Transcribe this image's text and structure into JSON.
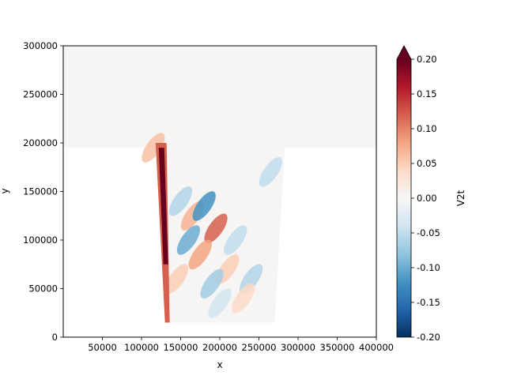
{
  "chart_data": {
    "type": "heatmap",
    "variable": "V2t",
    "xlabel": "x",
    "ylabel": "y",
    "xlim": [
      0,
      400000
    ],
    "ylim": [
      0,
      300000
    ],
    "xticks": [
      50000,
      100000,
      150000,
      200000,
      250000,
      300000,
      350000,
      400000
    ],
    "yticks": [
      0,
      50000,
      100000,
      150000,
      200000,
      250000,
      300000
    ],
    "colorbar": {
      "label": "V2t",
      "vmin": -0.2,
      "vmax": 0.2,
      "ticks": [
        "-0.20",
        "-0.15",
        "-0.10",
        "-0.05",
        "0.00",
        "0.05",
        "0.10",
        "0.15",
        "0.20"
      ],
      "extend": "max",
      "colormap": "RdBu_r",
      "colors": [
        "#053061",
        "#2166ac",
        "#4393c3",
        "#92c5de",
        "#d1e5f0",
        "#f7f7f7",
        "#fddbc7",
        "#f4a582",
        "#d6604d",
        "#b2182b",
        "#67001f"
      ]
    },
    "domain": {
      "shelf": {
        "x": [
          0,
          400000
        ],
        "y": [
          195000,
          300000
        ]
      },
      "channel_top_y": 195000,
      "channel_bottom_y": 15000,
      "channel_left_x_top": 118000,
      "channel_left_x_bottom": 135000,
      "channel_right_x_top": 283000,
      "channel_right_x_bottom": 270000
    },
    "features": [
      {
        "kind": "boundary_band",
        "x": [
          124000,
          134000
        ],
        "y": [
          15000,
          200000
        ],
        "value": 0.2
      },
      {
        "kind": "eddy",
        "x": 150000,
        "y": 140000,
        "value": -0.06
      },
      {
        "kind": "eddy",
        "x": 165000,
        "y": 125000,
        "value": 0.07
      },
      {
        "kind": "eddy",
        "x": 180000,
        "y": 135000,
        "value": -0.12
      },
      {
        "kind": "eddy",
        "x": 195000,
        "y": 112000,
        "value": 0.12
      },
      {
        "kind": "eddy",
        "x": 160000,
        "y": 100000,
        "value": -0.1
      },
      {
        "kind": "eddy",
        "x": 175000,
        "y": 85000,
        "value": 0.08
      },
      {
        "kind": "eddy",
        "x": 220000,
        "y": 100000,
        "value": -0.05
      },
      {
        "kind": "eddy",
        "x": 210000,
        "y": 70000,
        "value": 0.05
      },
      {
        "kind": "eddy",
        "x": 240000,
        "y": 60000,
        "value": -0.06
      },
      {
        "kind": "eddy",
        "x": 190000,
        "y": 55000,
        "value": -0.07
      },
      {
        "kind": "eddy",
        "x": 230000,
        "y": 40000,
        "value": 0.04
      },
      {
        "kind": "eddy",
        "x": 265000,
        "y": 170000,
        "value": -0.05
      },
      {
        "kind": "eddy",
        "x": 145000,
        "y": 60000,
        "value": 0.05
      },
      {
        "kind": "eddy",
        "x": 200000,
        "y": 35000,
        "value": -0.04
      },
      {
        "kind": "eddy",
        "x": 115000,
        "y": 195000,
        "value": 0.06
      }
    ]
  }
}
